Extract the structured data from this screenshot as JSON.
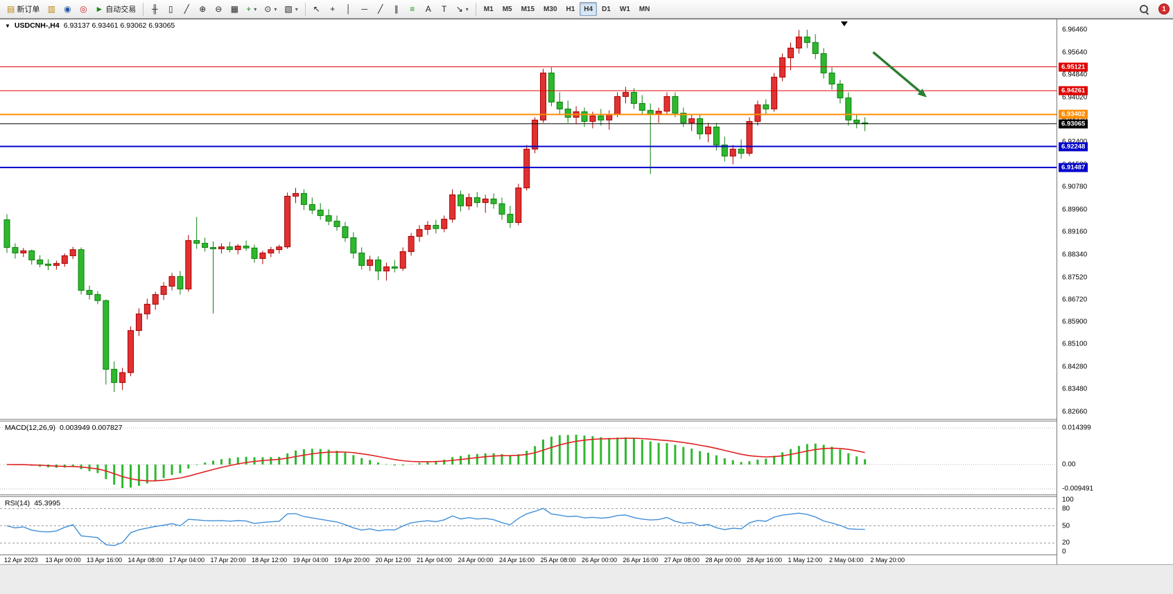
{
  "toolbar": {
    "left_buttons": [
      {
        "id": "new-order-button",
        "glyph": "▤",
        "glyph_color": "gold",
        "label": "新订单"
      },
      {
        "id": "profiles-button",
        "glyph": "▥",
        "glyph_color": "gold"
      },
      {
        "id": "market-watch-button",
        "glyph": "◉",
        "glyph_color": "blue"
      },
      {
        "id": "navigator-button",
        "glyph": "◎",
        "glyph_color": "red"
      },
      {
        "id": "auto-trading-button",
        "glyph": "►",
        "glyph_color": "green",
        "label": "自动交易"
      }
    ],
    "chart_buttons": [
      {
        "id": "bar-chart-button",
        "glyph": "╫"
      },
      {
        "id": "candlestick-button",
        "glyph": "▯"
      },
      {
        "id": "line-chart-button",
        "glyph": "╱"
      },
      {
        "id": "zoom-in-button",
        "glyph": "⊕"
      },
      {
        "id": "zoom-out-button",
        "glyph": "⊖"
      },
      {
        "id": "tile-windows-button",
        "glyph": "▦"
      },
      {
        "id": "indicators-button",
        "glyph": "+",
        "glyph_color": "green",
        "caret": true
      },
      {
        "id": "periods-button",
        "glyph": "⊙",
        "caret": true
      },
      {
        "id": "templates-button",
        "glyph": "▧",
        "caret": true
      }
    ],
    "tool_buttons": [
      {
        "id": "cursor-button",
        "glyph": "↖"
      },
      {
        "id": "crosshair-button",
        "glyph": "+"
      },
      {
        "id": "vertical-line-button",
        "glyph": "│"
      },
      {
        "id": "horizontal-line-button",
        "glyph": "─"
      },
      {
        "id": "trendline-button",
        "glyph": "╱"
      },
      {
        "id": "channel-button",
        "glyph": "∥"
      },
      {
        "id": "fibonacci-button",
        "glyph": "≡",
        "glyph_color": "green"
      },
      {
        "id": "text-button",
        "glyph": "A"
      },
      {
        "id": "label-button",
        "glyph": "T"
      },
      {
        "id": "arrows-button",
        "glyph": "↘",
        "caret": true
      }
    ],
    "timeframes": [
      {
        "label": "M1"
      },
      {
        "label": "M5"
      },
      {
        "label": "M15"
      },
      {
        "label": "M30"
      },
      {
        "label": "H1"
      },
      {
        "label": "H4",
        "active": true
      },
      {
        "label": "D1"
      },
      {
        "label": "W1"
      },
      {
        "label": "MN"
      }
    ],
    "notification_count": "1"
  },
  "chart": {
    "title": "USDCNH-,H4",
    "quote_line": "6.93137 6.93461 6.93062 6.93065"
  },
  "macd": {
    "header": "MACD(12,26,9)",
    "values": "0.003949 0.007827",
    "scale": [
      "0.014399",
      "0.00",
      "-0.009491"
    ]
  },
  "rsi": {
    "header": "RSI(14)",
    "value": "45.3995",
    "scale": [
      "100",
      "80",
      "50",
      "20",
      "0"
    ],
    "levels": [
      80,
      50,
      20
    ]
  },
  "price_axis_ticks": [
    "6.96460",
    "6.95640",
    "6.94840",
    "6.94020",
    "6.93220",
    "6.92400",
    "6.91580",
    "6.90780",
    "6.89960",
    "6.89160",
    "6.88340",
    "6.87520",
    "6.86720",
    "6.85900",
    "6.85100",
    "6.84280",
    "6.83480",
    "6.82660"
  ],
  "price_lines": [
    {
      "price": 6.95121,
      "label": "6.95121",
      "color": "#e00000",
      "width": 1
    },
    {
      "price": 6.94261,
      "label": "6.94261",
      "color": "#e00000",
      "width": 1
    },
    {
      "price": 6.93402,
      "label": "6.93402",
      "color": "#ff8c00",
      "width": 2
    },
    {
      "price": 6.93065,
      "label": "6.93065",
      "color": "#000000",
      "width": 1
    },
    {
      "price": 6.92248,
      "label": "6.92248",
      "color": "#0000cc",
      "width": 2
    },
    {
      "price": 6.91487,
      "label": "6.91487",
      "color": "#0000cc",
      "width": 2
    }
  ],
  "chart_data": {
    "type": "candlestick",
    "symbol": "USDCNH-",
    "timeframe": "H4",
    "ylim": [
      6.8266,
      6.9646
    ],
    "x_labels": [
      "12 Apr 2023",
      "13 Apr 00:00",
      "13 Apr 16:00",
      "14 Apr 08:00",
      "17 Apr 04:00",
      "17 Apr 20:00",
      "18 Apr 12:00",
      "19 Apr 04:00",
      "19 Apr 20:00",
      "20 Apr 12:00",
      "21 Apr 04:00",
      "24 Apr 00:00",
      "24 Apr 16:00",
      "25 Apr 08:00",
      "26 Apr 00:00",
      "26 Apr 16:00",
      "27 Apr 08:00",
      "28 Apr 00:00",
      "28 Apr 16:00",
      "1 May 12:00",
      "2 May 04:00",
      "2 May 20:00"
    ],
    "ohlc": [
      [
        6.896,
        6.898,
        6.884,
        6.886
      ],
      [
        6.886,
        6.8875,
        6.882,
        6.884
      ],
      [
        6.884,
        6.8858,
        6.8825,
        6.8848
      ],
      [
        6.8848,
        6.8852,
        6.8798,
        6.8815
      ],
      [
        6.8815,
        6.8832,
        6.8788,
        6.88
      ],
      [
        6.88,
        6.8818,
        6.8778,
        6.8795
      ],
      [
        6.8795,
        6.8812,
        6.878,
        6.8802
      ],
      [
        6.8802,
        6.8838,
        6.879,
        6.883
      ],
      [
        6.883,
        6.8862,
        6.8818,
        6.8852
      ],
      [
        6.8852,
        6.886,
        6.869,
        6.8705
      ],
      [
        6.8705,
        6.8722,
        6.8672,
        6.869
      ],
      [
        6.869,
        6.8702,
        6.8655,
        6.8668
      ],
      [
        6.8668,
        6.8672,
        6.8365,
        6.842
      ],
      [
        6.842,
        6.8448,
        6.8338,
        6.8372
      ],
      [
        6.8372,
        6.8425,
        6.8345,
        6.8408
      ],
      [
        6.8408,
        6.8575,
        6.8395,
        6.856
      ],
      [
        6.856,
        6.864,
        6.854,
        6.862
      ],
      [
        6.862,
        6.8675,
        6.86,
        6.8655
      ],
      [
        6.8655,
        6.87,
        6.8635,
        6.869
      ],
      [
        6.869,
        6.8735,
        6.867,
        6.872
      ],
      [
        6.872,
        6.8768,
        6.8705,
        6.8755
      ],
      [
        6.8755,
        6.8775,
        6.869,
        6.871
      ],
      [
        6.871,
        6.8905,
        6.87,
        6.8885
      ],
      [
        6.8885,
        6.897,
        6.8855,
        6.8875
      ],
      [
        6.8875,
        6.8895,
        6.8845,
        6.886
      ],
      [
        6.886,
        6.8882,
        6.8622,
        6.8855
      ],
      [
        6.8855,
        6.8875,
        6.8838,
        6.8862
      ],
      [
        6.8862,
        6.888,
        6.8842,
        6.8852
      ],
      [
        6.8852,
        6.8872,
        6.8835,
        6.8865
      ],
      [
        6.8865,
        6.8885,
        6.8848,
        6.8858
      ],
      [
        6.8858,
        6.887,
        6.8805,
        6.882
      ],
      [
        6.882,
        6.8848,
        6.88,
        6.884
      ],
      [
        6.884,
        6.8862,
        6.8825,
        6.8852
      ],
      [
        6.8852,
        6.887,
        6.8838,
        6.8862
      ],
      [
        6.8862,
        6.9058,
        6.8855,
        6.9045
      ],
      [
        6.9045,
        6.9075,
        6.902,
        6.9055
      ],
      [
        6.9055,
        6.907,
        6.8995,
        6.9015
      ],
      [
        6.9015,
        6.904,
        6.898,
        6.8995
      ],
      [
        6.8995,
        6.902,
        6.896,
        6.8975
      ],
      [
        6.8975,
        6.8998,
        6.894,
        6.8955
      ],
      [
        6.8955,
        6.8975,
        6.892,
        6.8935
      ],
      [
        6.8935,
        6.8952,
        6.888,
        6.8895
      ],
      [
        6.8895,
        6.8915,
        6.882,
        6.884
      ],
      [
        6.884,
        6.886,
        6.878,
        6.8795
      ],
      [
        6.8795,
        6.883,
        6.8775,
        6.8815
      ],
      [
        6.8815,
        6.8828,
        6.8742,
        6.8775
      ],
      [
        6.8775,
        6.8805,
        6.874,
        6.879
      ],
      [
        6.879,
        6.8815,
        6.877,
        6.8785
      ],
      [
        6.8785,
        6.886,
        6.8775,
        6.8845
      ],
      [
        6.8845,
        6.8912,
        6.883,
        6.89
      ],
      [
        6.89,
        6.894,
        6.888,
        6.8925
      ],
      [
        6.8925,
        6.8955,
        6.8905,
        6.894
      ],
      [
        6.894,
        6.896,
        6.891,
        6.8928
      ],
      [
        6.8928,
        6.8975,
        6.8915,
        6.8962
      ],
      [
        6.8962,
        6.907,
        6.895,
        6.905
      ],
      [
        6.905,
        6.9065,
        6.899,
        6.901
      ],
      [
        6.901,
        6.9055,
        6.8995,
        6.904
      ],
      [
        6.904,
        6.906,
        6.9005,
        6.9022
      ],
      [
        6.9022,
        6.905,
        6.8985,
        6.9035
      ],
      [
        6.9035,
        6.9055,
        6.9,
        6.9018
      ],
      [
        6.9018,
        6.904,
        6.896,
        6.898
      ],
      [
        6.898,
        6.901,
        6.893,
        6.895
      ],
      [
        6.895,
        6.909,
        6.894,
        6.9075
      ],
      [
        6.9075,
        6.923,
        6.9065,
        6.9215
      ],
      [
        6.9215,
        6.933,
        6.92,
        6.932
      ],
      [
        6.932,
        6.9505,
        6.931,
        6.949
      ],
      [
        6.949,
        6.951,
        6.937,
        6.9385
      ],
      [
        6.9385,
        6.942,
        6.934,
        6.936
      ],
      [
        6.936,
        6.939,
        6.931,
        6.933
      ],
      [
        6.933,
        6.937,
        6.9305,
        6.935
      ],
      [
        6.935,
        6.9365,
        6.9295,
        6.9315
      ],
      [
        6.9315,
        6.935,
        6.929,
        6.9335
      ],
      [
        6.9335,
        6.936,
        6.93,
        6.932
      ],
      [
        6.932,
        6.9355,
        6.9285,
        6.934
      ],
      [
        6.934,
        6.942,
        6.933,
        6.9405
      ],
      [
        6.9405,
        6.944,
        6.938,
        6.942
      ],
      [
        6.942,
        6.9435,
        6.936,
        6.938
      ],
      [
        6.938,
        6.941,
        6.934,
        6.9355
      ],
      [
        6.9355,
        6.938,
        6.9125,
        6.934
      ],
      [
        6.934,
        6.9365,
        6.931,
        6.9352
      ],
      [
        6.9352,
        6.942,
        6.934,
        6.9405
      ],
      [
        6.9405,
        6.942,
        6.933,
        6.9345
      ],
      [
        6.9345,
        6.9365,
        6.9295,
        6.931
      ],
      [
        6.931,
        6.934,
        6.928,
        6.9325
      ],
      [
        6.9325,
        6.934,
        6.925,
        6.927
      ],
      [
        6.927,
        6.931,
        6.924,
        6.9295
      ],
      [
        6.9295,
        6.931,
        6.921,
        6.923
      ],
      [
        6.923,
        6.926,
        6.917,
        6.919
      ],
      [
        6.919,
        6.923,
        6.916,
        6.9215
      ],
      [
        6.9215,
        6.925,
        6.918,
        6.92
      ],
      [
        6.92,
        6.933,
        6.919,
        6.9315
      ],
      [
        6.9315,
        6.939,
        6.93,
        6.9375
      ],
      [
        6.9375,
        6.9395,
        6.934,
        6.936
      ],
      [
        6.936,
        6.949,
        6.935,
        6.9475
      ],
      [
        6.9475,
        6.956,
        6.946,
        6.9545
      ],
      [
        6.9545,
        6.96,
        6.95,
        6.958
      ],
      [
        6.958,
        6.9645,
        6.956,
        6.962
      ],
      [
        6.962,
        6.9646,
        6.958,
        6.96
      ],
      [
        6.96,
        6.963,
        6.954,
        6.956
      ],
      [
        6.956,
        6.958,
        6.947,
        6.949
      ],
      [
        6.949,
        6.951,
        6.943,
        6.945
      ],
      [
        6.945,
        6.9465,
        6.938,
        6.94
      ],
      [
        6.94,
        6.942,
        6.93,
        6.932
      ],
      [
        6.932,
        6.934,
        6.929,
        6.931
      ],
      [
        6.931,
        6.933,
        6.928,
        6.93065
      ]
    ],
    "annotations": [
      {
        "type": "arrow",
        "color": "#2e7d32",
        "from": {
          "index": 105,
          "price": 6.9565
        },
        "to": {
          "index": 111.5,
          "price": 6.9402
        }
      },
      {
        "type": "marker-down",
        "color": "#000000",
        "index": 101.5
      }
    ],
    "colors": {
      "bull_fill": "#e03232",
      "bull_stroke": "#a80000",
      "bear_fill": "#2eb82e",
      "bear_stroke": "#0c7e0c",
      "macd_hist": "#2eb82e",
      "macd_signal": "#e02020",
      "rsi_line": "#3f8fd9"
    }
  }
}
